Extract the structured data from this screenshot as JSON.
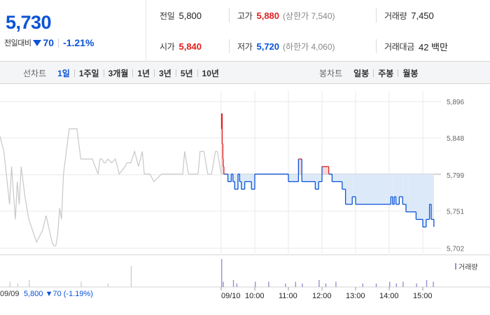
{
  "quote": {
    "price": "5,730",
    "change_label": "전일대비",
    "change_value": "70",
    "change_pct": "-1.21%",
    "prev_close_label": "전일",
    "prev_close": "5,800",
    "high_label": "고가",
    "high": "5,880",
    "upper_limit": "(상한가 7,540)",
    "volume_label": "거래량",
    "volume": "7,450",
    "open_label": "시가",
    "open": "5,840",
    "low_label": "저가",
    "low": "5,720",
    "lower_limit": "(하한가 4,060)",
    "trade_value_label": "거래대금",
    "trade_value": "42 백만"
  },
  "line_toolbar": {
    "title": "선차트",
    "items": [
      "1일",
      "1주일",
      "3개월",
      "1년",
      "3년",
      "5년",
      "10년"
    ],
    "active": "1일"
  },
  "candle_toolbar": {
    "title": "봉차트",
    "items": [
      "일봉",
      "주봉",
      "월봉"
    ]
  },
  "colors": {
    "up": "#e02020",
    "down": "#0a53d8",
    "prev_line": "#c8c8c8",
    "fill": "#dce9f8"
  },
  "chart_data": {
    "type": "line",
    "prev_close": 5800,
    "ylim": [
      5695,
      5910
    ],
    "y_ticks": [
      "5,896",
      "5,848",
      "5,799",
      "5,751",
      "5,702"
    ],
    "y_tick_values": [
      5896,
      5848,
      5799,
      5751,
      5702
    ],
    "x_ticks": [
      "09/10",
      "10:00",
      "11:00",
      "12:00",
      "13:00",
      "14:00",
      "15:00"
    ],
    "x_tick_hours": [
      9.0,
      10.0,
      11.0,
      12.0,
      13.0,
      14.0,
      15.0
    ],
    "prev_day_label": "09/09",
    "prev_day_summary": "5,800 ▼70 (-1.19%)",
    "volume_legend": "거래량",
    "prev_day_series": {
      "x": [
        0,
        2,
        5,
        6,
        8,
        9,
        10,
        11,
        13,
        15,
        19,
        22,
        24,
        27,
        28,
        29,
        30,
        31,
        32,
        33,
        36,
        40,
        42,
        48,
        51,
        52,
        53,
        54,
        55,
        56,
        58,
        60,
        62,
        65,
        66,
        68,
        70,
        72,
        73,
        74,
        75,
        78,
        80,
        84,
        88,
        90,
        92,
        95,
        96,
        98,
        100,
        103,
        104,
        106,
        108,
        110,
        112,
        113,
        115
      ],
      "y": [
        5850,
        5830,
        5760,
        5810,
        5740,
        5790,
        5760,
        5810,
        5770,
        5740,
        5710,
        5725,
        5745,
        5710,
        5705,
        5705,
        5720,
        5755,
        5740,
        5800,
        5860,
        5860,
        5820,
        5820,
        5800,
        5820,
        5820,
        5815,
        5815,
        5820,
        5815,
        5820,
        5800,
        5810,
        5815,
        5815,
        5830,
        5810,
        5820,
        5830,
        5800,
        5800,
        5790,
        5800,
        5800,
        5800,
        5800,
        5800,
        5830,
        5800,
        5800,
        5800,
        5830,
        5830,
        5800,
        5800,
        5830,
        5830,
        5800
      ]
    },
    "intraday_series": {
      "hours": [
        9.0,
        9.01,
        9.03,
        9.05,
        9.06,
        9.08,
        9.1,
        9.15,
        9.2,
        9.25,
        9.3,
        9.35,
        9.4,
        9.45,
        9.5,
        9.55,
        9.6,
        9.7,
        9.8,
        9.9,
        10.0,
        10.1,
        10.2,
        10.4,
        10.6,
        10.9,
        11.0,
        11.1,
        11.2,
        11.3,
        11.4,
        11.5,
        11.7,
        11.8,
        11.9,
        12.0,
        12.2,
        12.3,
        12.4,
        12.5,
        12.6,
        12.7,
        12.8,
        12.9,
        13.0,
        13.2,
        13.5,
        13.7,
        13.9,
        14.0,
        14.05,
        14.1,
        14.15,
        14.2,
        14.3,
        14.4,
        14.5,
        14.6,
        14.8,
        15.0,
        15.1,
        15.2,
        15.25,
        15.33
      ],
      "values": [
        5860,
        5880,
        5840,
        5820,
        5810,
        5800,
        5800,
        5800,
        5790,
        5790,
        5800,
        5790,
        5780,
        5780,
        5800,
        5790,
        5780,
        5790,
        5790,
        5780,
        5800,
        5800,
        5800,
        5800,
        5800,
        5800,
        5790,
        5790,
        5790,
        5820,
        5790,
        5790,
        5790,
        5780,
        5790,
        5810,
        5800,
        5790,
        5790,
        5790,
        5780,
        5760,
        5760,
        5770,
        5760,
        5760,
        5760,
        5760,
        5760,
        5760,
        5770,
        5760,
        5770,
        5760,
        5770,
        5760,
        5750,
        5750,
        5740,
        5730,
        5740,
        5760,
        5740,
        5730
      ]
    },
    "volume_series": {
      "prev_day": [
        0,
        0,
        3,
        0,
        0,
        2,
        0,
        0,
        0,
        4,
        0,
        0,
        0,
        0,
        0,
        0,
        0,
        0,
        0,
        0,
        0,
        0,
        3,
        0,
        0,
        0,
        0,
        0,
        0,
        2,
        0,
        0,
        0,
        0,
        0,
        12,
        0,
        0,
        0,
        0,
        0,
        0,
        0,
        0,
        0,
        0,
        0,
        0,
        0,
        0,
        0,
        0,
        0,
        0,
        0,
        0,
        0,
        0,
        0
      ],
      "intraday_hours": [
        9.0,
        9.05,
        9.35,
        9.45,
        10.0,
        10.4,
        10.9,
        11.2,
        11.4,
        11.9,
        12.1,
        12.4,
        13.2,
        13.6,
        14.0,
        14.2,
        14.4,
        14.8,
        15.1,
        15.3
      ],
      "intraday": [
        16,
        3,
        4,
        2,
        3,
        3,
        2,
        3,
        2,
        4,
        2,
        3,
        2,
        2,
        3,
        2,
        3,
        2,
        4,
        3
      ]
    }
  }
}
